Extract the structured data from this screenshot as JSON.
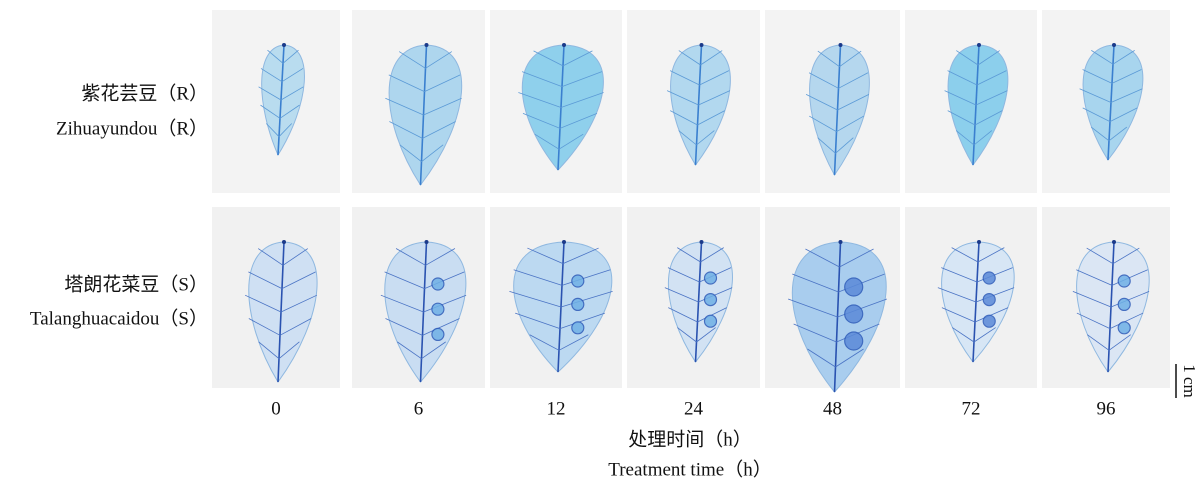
{
  "rows": [
    {
      "label_zh": "紫花芸豆（R）",
      "label_en": "Zihuayundou（R）"
    },
    {
      "label_zh": "塔朗花菜豆（S）",
      "label_en": "Talanghuacaidou（S）"
    }
  ],
  "columns": [
    "0",
    "6",
    "12",
    "24",
    "48",
    "72",
    "96"
  ],
  "axis_title": {
    "zh": "处理时间（h）",
    "en": "Treatment time（h）"
  },
  "scale_bar": "1 cm"
}
